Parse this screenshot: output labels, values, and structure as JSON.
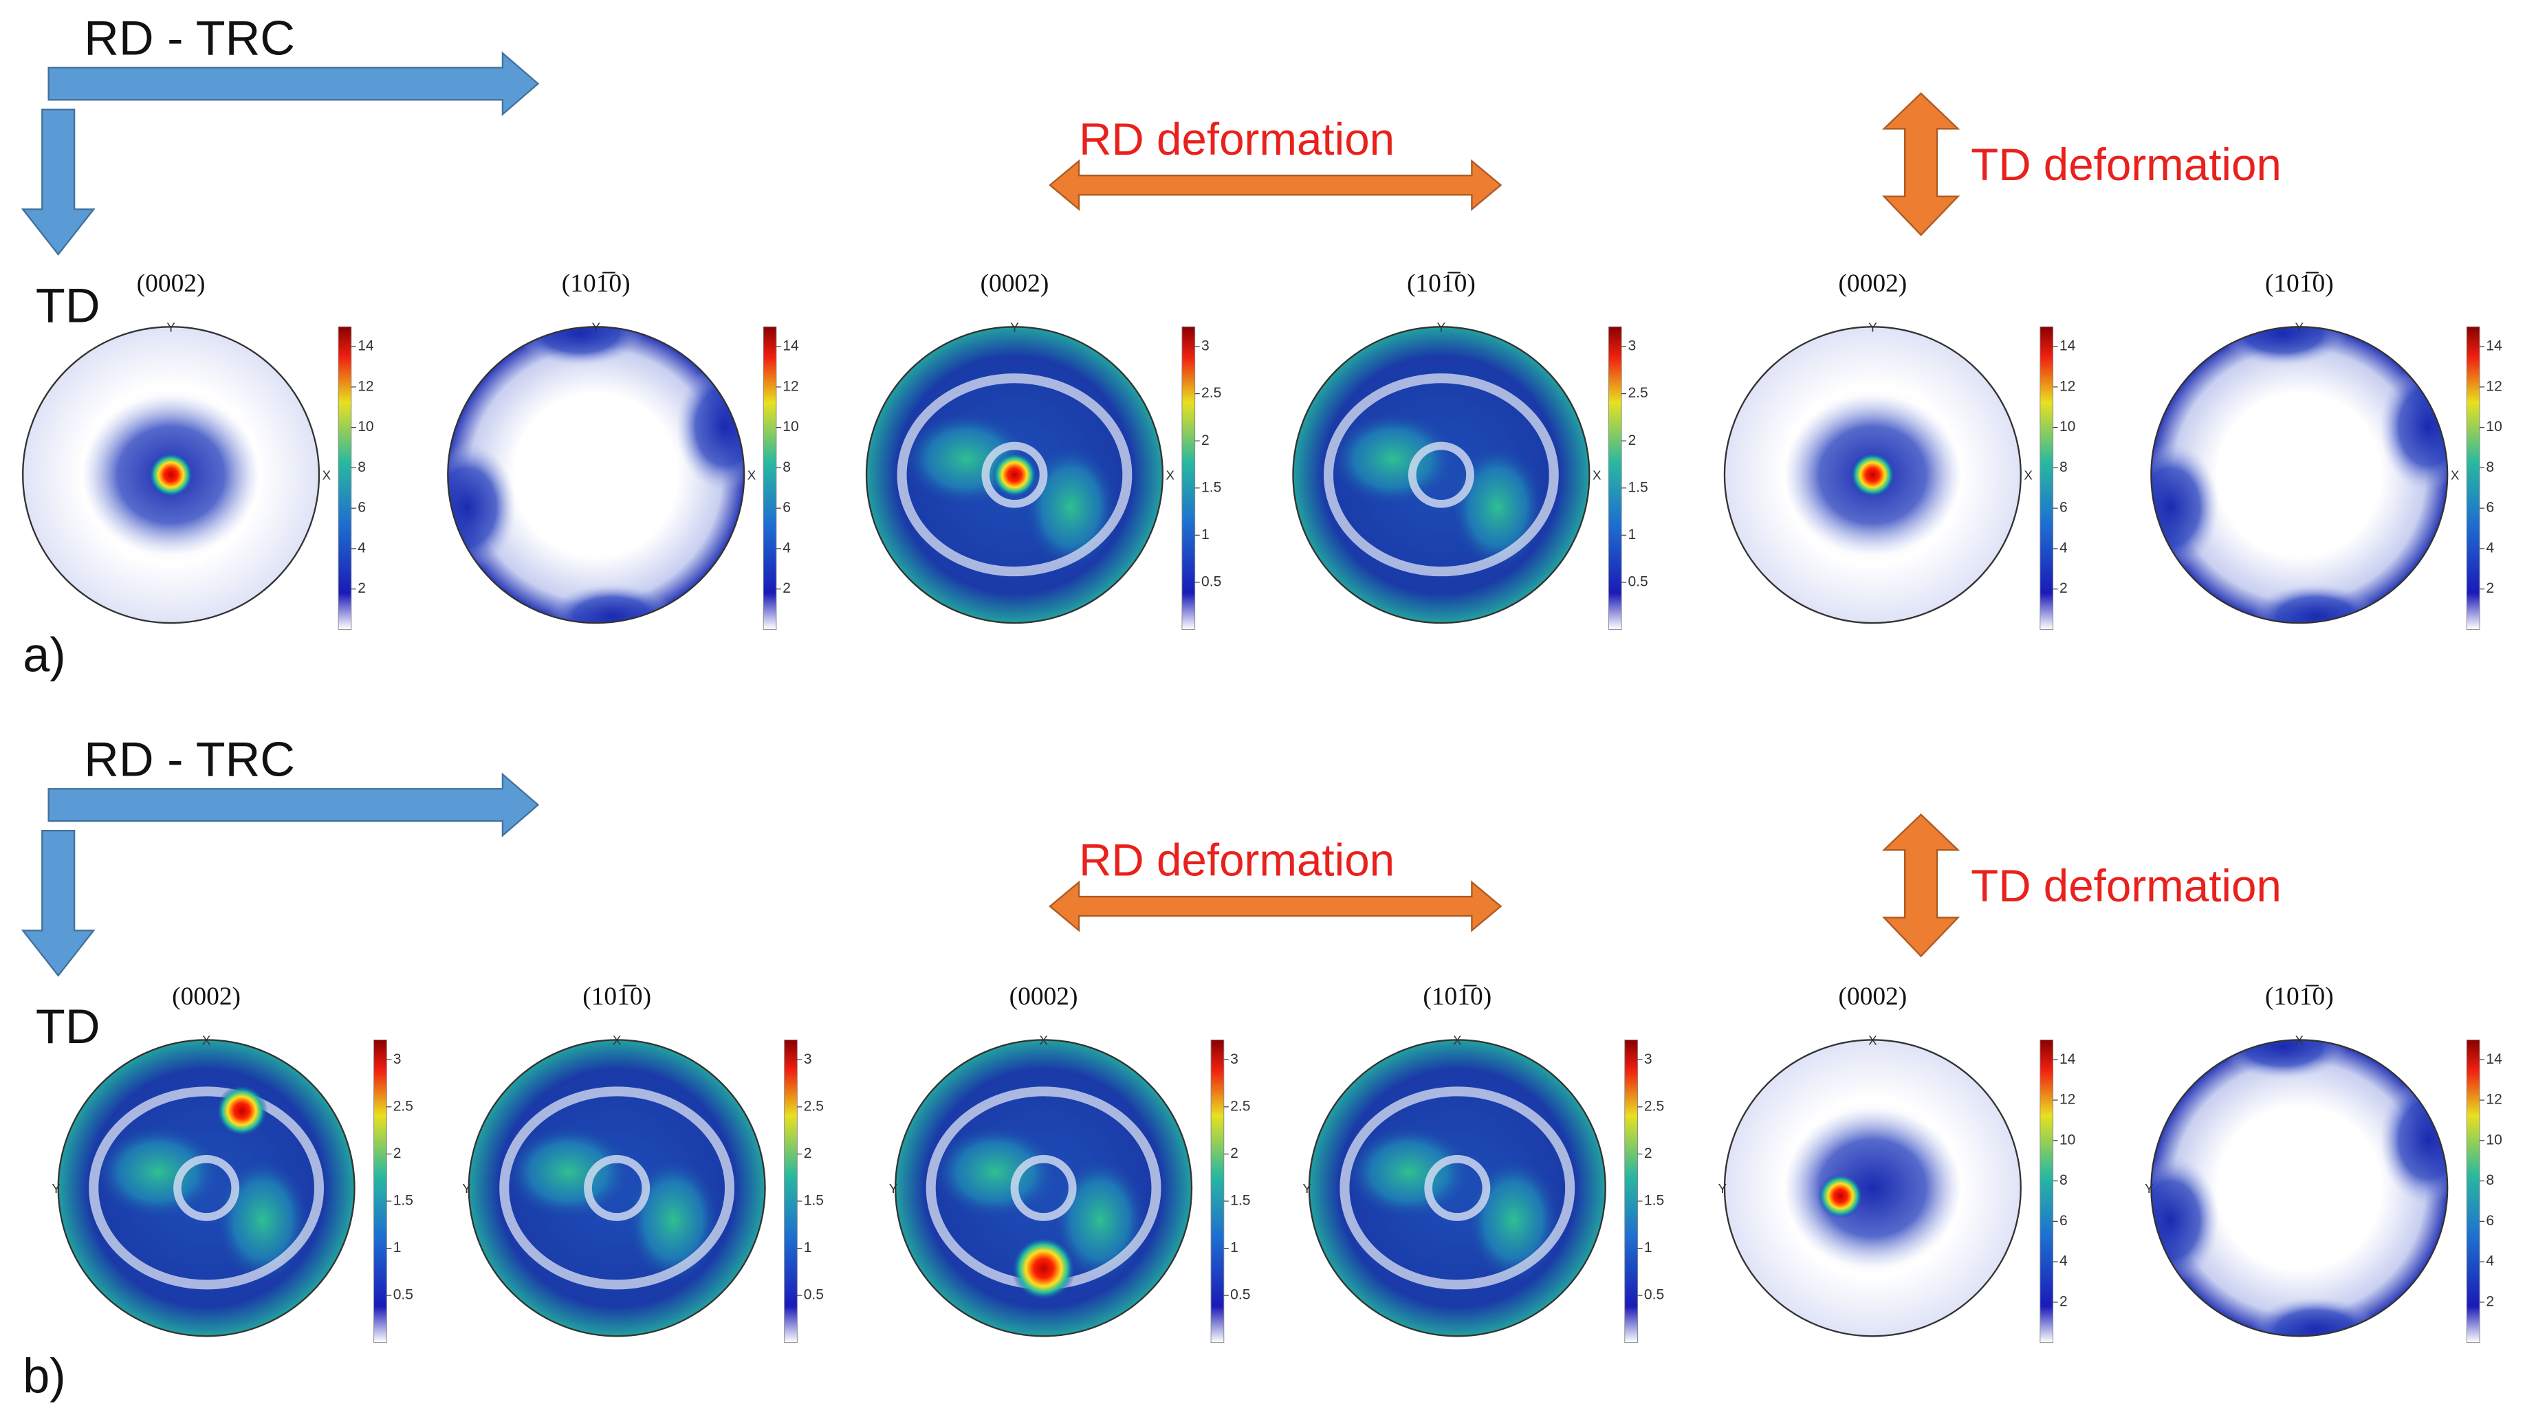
{
  "rows": [
    {
      "label": "a)",
      "direction_label": "RD - TRC",
      "side_label": "TD",
      "rd_label": "RD deformation",
      "td_label": "TD deformation",
      "panels": [
        {
          "title": "(0002)",
          "top_label": "Y",
          "side_marker": "X",
          "colorbar_ticks": [
            2,
            4,
            6,
            8,
            10,
            12,
            14
          ]
        },
        {
          "title": "(101̅0)",
          "top_label": "Y",
          "side_marker": "X",
          "colorbar_ticks": [
            2,
            4,
            6,
            8,
            10,
            12,
            14
          ]
        },
        {
          "title": "(0002)",
          "top_label": "Y",
          "side_marker": "X",
          "colorbar_ticks": [
            0.5,
            1,
            1.5,
            2,
            2.5,
            3
          ]
        },
        {
          "title": "(101̅0)",
          "top_label": "Y",
          "side_marker": "X",
          "colorbar_ticks": [
            0.5,
            1,
            1.5,
            2,
            2.5,
            3
          ]
        },
        {
          "title": "(0002)",
          "top_label": "Y",
          "side_marker": "X",
          "colorbar_ticks": [
            2,
            4,
            6,
            8,
            10,
            12,
            14
          ]
        },
        {
          "title": "(101̅0)",
          "top_label": "Y",
          "side_marker": "X",
          "colorbar_ticks": [
            2,
            4,
            6,
            8,
            10,
            12,
            14
          ]
        }
      ]
    },
    {
      "label": "b)",
      "direction_label": "RD - TRC",
      "side_label": "TD",
      "rd_label": "RD deformation",
      "td_label": "TD deformation",
      "panels": [
        {
          "title": "(0002)",
          "top_label": "X",
          "side_marker": "Y",
          "colorbar_ticks": [
            0.5,
            1,
            1.5,
            2,
            2.5,
            3
          ]
        },
        {
          "title": "(101̅0)",
          "top_label": "X",
          "side_marker": "Y",
          "colorbar_ticks": [
            0.5,
            1,
            1.5,
            2,
            2.5,
            3
          ]
        },
        {
          "title": "(0002)",
          "top_label": "X",
          "side_marker": "Y",
          "colorbar_ticks": [
            0.5,
            1,
            1.5,
            2,
            2.5,
            3
          ]
        },
        {
          "title": "(101̅0)",
          "top_label": "X",
          "side_marker": "Y",
          "colorbar_ticks": [
            0.5,
            1,
            1.5,
            2,
            2.5,
            3
          ]
        },
        {
          "title": "(0002)",
          "top_label": "X",
          "side_marker": "Y",
          "colorbar_ticks": [
            2,
            4,
            6,
            8,
            10,
            12,
            14
          ]
        },
        {
          "title": "(101̅0)",
          "top_label": "X",
          "side_marker": "Y",
          "colorbar_ticks": [
            2,
            4,
            6,
            8,
            10,
            12,
            14
          ]
        }
      ]
    }
  ]
}
